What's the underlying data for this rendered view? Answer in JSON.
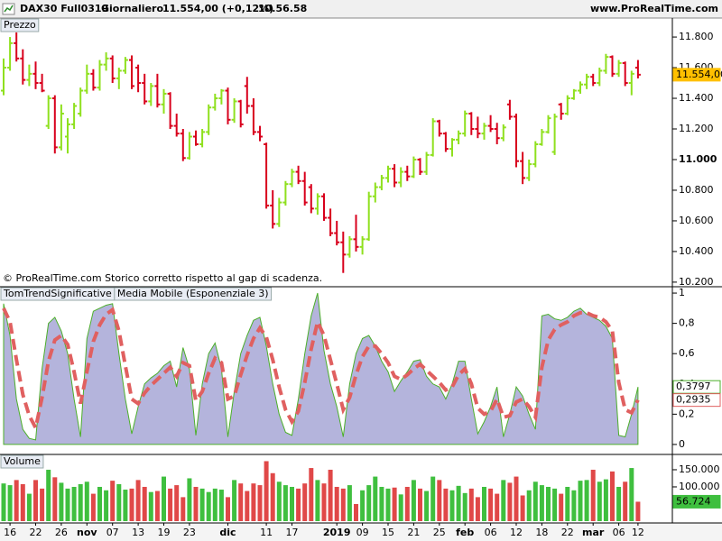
{
  "header": {
    "symbol": "DAX30 Full0319",
    "period": "Giornaliero",
    "quote": "11.554,00 (+0,12%)",
    "time": "10.56.58",
    "site": "www.ProRealTime.com"
  },
  "chart_data": [
    {
      "type": "ohlc",
      "title": "Prezzo",
      "annotation": "© ProRealTime.com  Storico corretto rispetto al gap di scadenza.",
      "up_color": "#8fe01e",
      "down_color": "#d8001c",
      "open": [
        11450,
        11600,
        11760,
        11660,
        11520,
        11560,
        11500,
        11220,
        11400,
        11080,
        11150,
        11230,
        11300,
        11450,
        11560,
        11470,
        11620,
        11660,
        11530,
        11580,
        11650,
        11600,
        11500,
        11380,
        11480,
        11360,
        11430,
        11220,
        11170,
        11010,
        11150,
        11100,
        11180,
        11340,
        11400,
        11450,
        11260,
        11380,
        11480,
        11350,
        11180,
        11100,
        10700,
        10580,
        10720,
        10840,
        10920,
        10860,
        10820,
        10680,
        10760,
        10620,
        10520,
        10460,
        10380,
        10480,
        10430,
        10480,
        10760,
        10820,
        10880,
        10940,
        10850,
        10920,
        10890,
        11000,
        10920,
        11030,
        11250,
        11170,
        11070,
        11130,
        11170,
        11300,
        11200,
        11170,
        11220,
        11200,
        11140,
        11360,
        11280,
        10990,
        10880,
        10970,
        11100,
        11180,
        11050,
        11360,
        11300,
        11400,
        11450,
        11490,
        11540,
        11500,
        11580,
        11670,
        11560,
        11630,
        11500,
        11600
      ],
      "high": [
        11660,
        11800,
        11830,
        11720,
        11620,
        11640,
        11560,
        11420,
        11420,
        11360,
        11270,
        11370,
        11470,
        11620,
        11590,
        11650,
        11700,
        11680,
        11600,
        11670,
        11680,
        11620,
        11560,
        11500,
        11560,
        11460,
        11440,
        11300,
        11200,
        11180,
        11190,
        11200,
        11360,
        11430,
        11460,
        11470,
        11400,
        11390,
        11540,
        11400,
        11220,
        11110,
        10800,
        10750,
        10860,
        10940,
        10960,
        10920,
        10840,
        10780,
        10780,
        10680,
        10600,
        10530,
        10500,
        10640,
        10500,
        10790,
        10850,
        10900,
        10960,
        10970,
        10950,
        10960,
        11020,
        11010,
        11050,
        11270,
        11260,
        11180,
        11140,
        11190,
        11320,
        11310,
        11280,
        11240,
        11290,
        11240,
        11230,
        11390,
        11300,
        11050,
        11000,
        11120,
        11200,
        11290,
        11300,
        11370,
        11420,
        11460,
        11510,
        11560,
        11560,
        11600,
        11690,
        11680,
        11650,
        11640,
        11580,
        11650
      ],
      "low": [
        11420,
        11580,
        11640,
        11490,
        11480,
        11460,
        11440,
        11200,
        11040,
        11060,
        11040,
        11200,
        11280,
        11430,
        11450,
        11450,
        11580,
        11500,
        11460,
        11560,
        11460,
        11440,
        11360,
        11350,
        11340,
        11300,
        11200,
        11150,
        10990,
        11000,
        11090,
        11080,
        11160,
        11320,
        11360,
        11230,
        11240,
        11210,
        11300,
        11160,
        11120,
        10680,
        10550,
        10560,
        10700,
        10820,
        10840,
        10700,
        10650,
        10640,
        10600,
        10500,
        10440,
        10260,
        10360,
        10400,
        10380,
        10470,
        10720,
        10800,
        10850,
        10820,
        10820,
        10860,
        10880,
        10900,
        10900,
        11020,
        11150,
        11050,
        11020,
        11100,
        11150,
        11160,
        11140,
        11130,
        11180,
        11100,
        11120,
        11260,
        10950,
        10840,
        10860,
        10950,
        11090,
        11170,
        11030,
        11260,
        11290,
        11390,
        11430,
        11460,
        11480,
        11480,
        11560,
        11540,
        11540,
        11480,
        11420,
        11530
      ],
      "close": [
        11600,
        11760,
        11660,
        11520,
        11560,
        11500,
        11450,
        11400,
        11080,
        11300,
        11230,
        11350,
        11450,
        11560,
        11470,
        11620,
        11660,
        11530,
        11580,
        11650,
        11480,
        11500,
        11380,
        11480,
        11360,
        11430,
        11220,
        11170,
        11010,
        11150,
        11100,
        11180,
        11340,
        11400,
        11450,
        11260,
        11380,
        11230,
        11350,
        11180,
        11150,
        10700,
        10580,
        10720,
        10840,
        10920,
        10860,
        10720,
        10680,
        10760,
        10620,
        10520,
        10460,
        10380,
        10480,
        10430,
        10480,
        10760,
        10820,
        10880,
        10940,
        10850,
        10920,
        10890,
        11000,
        10920,
        11030,
        11250,
        11170,
        11070,
        11130,
        11170,
        11300,
        11200,
        11170,
        11220,
        11200,
        11140,
        11210,
        11280,
        10990,
        10880,
        10970,
        11100,
        11180,
        11270,
        11280,
        11300,
        11400,
        11450,
        11490,
        11540,
        11500,
        11580,
        11670,
        11560,
        11630,
        11500,
        11560,
        11554
      ],
      "ylim": [
        10170,
        11924
      ],
      "yticks": [
        {
          "value": 10200,
          "label": "10.200"
        },
        {
          "value": 10400,
          "label": "10.400"
        },
        {
          "value": 10600,
          "label": "10.600"
        },
        {
          "value": 10800,
          "label": "10.800"
        },
        {
          "value": 11000,
          "label": "11.000"
        },
        {
          "value": 11200,
          "label": "11.200"
        },
        {
          "value": 11400,
          "label": "11.400"
        },
        {
          "value": 11600,
          "label": "11.600"
        },
        {
          "value": 11800,
          "label": "11.800"
        }
      ],
      "current": {
        "value": 11554,
        "label": "11.554,00",
        "color": "#ffc000"
      }
    },
    {
      "type": "area",
      "series": [
        {
          "name": "TomTrendSignificative",
          "color": "#4caf2a",
          "fill": "#b4b4dc",
          "current": {
            "value": 0.3797,
            "label": "0,3797"
          },
          "values": [
            0.93,
            0.72,
            0.3,
            0.1,
            0.04,
            0.03,
            0.5,
            0.8,
            0.84,
            0.75,
            0.6,
            0.3,
            0.05,
            0.7,
            0.88,
            0.9,
            0.92,
            0.93,
            0.6,
            0.3,
            0.07,
            0.25,
            0.4,
            0.44,
            0.47,
            0.52,
            0.55,
            0.38,
            0.64,
            0.5,
            0.06,
            0.4,
            0.6,
            0.67,
            0.5,
            0.05,
            0.35,
            0.6,
            0.72,
            0.82,
            0.84,
            0.65,
            0.4,
            0.2,
            0.08,
            0.06,
            0.3,
            0.6,
            0.85,
            1.0,
            0.62,
            0.4,
            0.25,
            0.05,
            0.4,
            0.6,
            0.7,
            0.72,
            0.65,
            0.55,
            0.48,
            0.35,
            0.42,
            0.48,
            0.55,
            0.56,
            0.45,
            0.4,
            0.38,
            0.3,
            0.4,
            0.55,
            0.55,
            0.3,
            0.07,
            0.15,
            0.25,
            0.38,
            0.05,
            0.2,
            0.38,
            0.32,
            0.2,
            0.1,
            0.85,
            0.86,
            0.83,
            0.82,
            0.84,
            0.88,
            0.9,
            0.86,
            0.84,
            0.82,
            0.78,
            0.7,
            0.06,
            0.05,
            0.2,
            0.3797
          ]
        },
        {
          "name": "Media Mobile (Esponenziale 3)",
          "color": "#e06060",
          "dashed": true,
          "current": {
            "value": 0.2935,
            "label": "0,2935"
          },
          "values": [
            0.9,
            0.81,
            0.56,
            0.33,
            0.19,
            0.11,
            0.31,
            0.55,
            0.69,
            0.72,
            0.66,
            0.48,
            0.27,
            0.48,
            0.68,
            0.79,
            0.86,
            0.89,
            0.75,
            0.52,
            0.3,
            0.27,
            0.34,
            0.39,
            0.43,
            0.47,
            0.51,
            0.45,
            0.54,
            0.52,
            0.29,
            0.35,
            0.47,
            0.57,
            0.54,
            0.3,
            0.32,
            0.46,
            0.59,
            0.7,
            0.77,
            0.71,
            0.56,
            0.38,
            0.23,
            0.15,
            0.22,
            0.41,
            0.63,
            0.81,
            0.72,
            0.56,
            0.4,
            0.23,
            0.31,
            0.46,
            0.58,
            0.65,
            0.65,
            0.6,
            0.54,
            0.45,
            0.43,
            0.46,
            0.5,
            0.53,
            0.49,
            0.45,
            0.41,
            0.36,
            0.38,
            0.46,
            0.5,
            0.4,
            0.24,
            0.2,
            0.22,
            0.3,
            0.18,
            0.19,
            0.28,
            0.3,
            0.25,
            0.18,
            0.51,
            0.69,
            0.76,
            0.79,
            0.81,
            0.85,
            0.87,
            0.87,
            0.85,
            0.84,
            0.81,
            0.75,
            0.41,
            0.23,
            0.21,
            0.2935
          ]
        }
      ],
      "ylim": [
        -0.06,
        1.042
      ],
      "yticks": [
        0,
        {
          "value": 0.2,
          "label": "0,2"
        },
        {
          "value": 0.4,
          "label": "0,4"
        },
        {
          "value": 0.6,
          "label": "0,6"
        },
        {
          "value": 0.8,
          "label": "0,8"
        },
        1
      ]
    },
    {
      "type": "bar",
      "title": "Volume",
      "up_color": "#3fbf3f",
      "down_color": "#e04848",
      "values": [
        110000,
        105000,
        120000,
        108000,
        80000,
        120000,
        95000,
        150000,
        128000,
        112000,
        95000,
        100000,
        108000,
        115000,
        80000,
        100000,
        90000,
        118000,
        108000,
        92000,
        95000,
        120000,
        100000,
        85000,
        88000,
        130000,
        95000,
        105000,
        70000,
        125000,
        100000,
        95000,
        85000,
        95000,
        92000,
        70000,
        120000,
        110000,
        88000,
        110000,
        105000,
        175000,
        140000,
        115000,
        105000,
        100000,
        95000,
        110000,
        155000,
        120000,
        110000,
        150000,
        100000,
        95000,
        105000,
        50000,
        90000,
        105000,
        130000,
        100000,
        95000,
        98000,
        78000,
        100000,
        120000,
        95000,
        88000,
        130000,
        120000,
        95000,
        90000,
        103000,
        82000,
        95000,
        70000,
        100000,
        95000,
        80000,
        120000,
        112000,
        130000,
        75000,
        90000,
        115000,
        105000,
        100000,
        95000,
        80000,
        100000,
        90000,
        118000,
        120000,
        150000,
        115000,
        122000,
        145000,
        100000,
        115000,
        155000,
        56724
      ],
      "ylim": [
        0,
        192000
      ],
      "yticks": [
        {
          "value": 100000,
          "label": "100.000"
        },
        {
          "value": 150000,
          "label": "150.000"
        }
      ],
      "current": {
        "value": 56724,
        "label": "56.724",
        "color": "#3fbf3f"
      },
      "categories": [
        null,
        "16",
        null,
        null,
        null,
        "22",
        null,
        null,
        null,
        "26",
        null,
        null,
        null,
        "nov",
        null,
        null,
        null,
        "07",
        null,
        null,
        null,
        "13",
        null,
        null,
        null,
        "19",
        null,
        null,
        null,
        "23",
        null,
        null,
        null,
        null,
        null,
        "dic",
        null,
        null,
        null,
        null,
        null,
        "11",
        null,
        null,
        null,
        "17",
        null,
        null,
        null,
        null,
        null,
        null,
        "2019",
        null,
        null,
        null,
        "09",
        null,
        null,
        null,
        "15",
        null,
        null,
        null,
        "21",
        null,
        null,
        null,
        "25",
        null,
        null,
        null,
        "feb",
        null,
        null,
        null,
        "06",
        null,
        null,
        null,
        "12",
        null,
        null,
        null,
        "18",
        null,
        null,
        null,
        "22",
        null,
        null,
        null,
        "mar",
        null,
        null,
        null,
        "06",
        null,
        null,
        "12"
      ]
    }
  ]
}
